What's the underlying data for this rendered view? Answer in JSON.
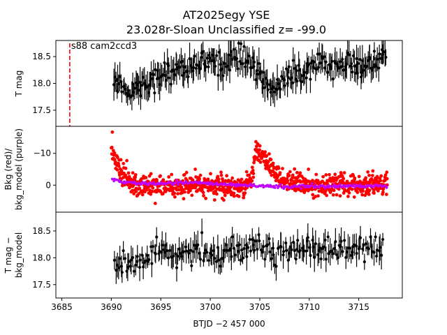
{
  "chart_data": {
    "type": "scatter",
    "title_lines": [
      "AT2025egy  YSE",
      "23.028r-Sloan Unclassified z= -99.0"
    ],
    "xlabel": "BTJD −2 457 000",
    "xlim": [
      3684.4,
      3719.4
    ],
    "xticks": [
      3685,
      3690,
      3695,
      3700,
      3705,
      3710,
      3715
    ],
    "vline": {
      "x": 3685.8,
      "color": "#ff0000",
      "style": "dashed"
    },
    "annotation": "s88 cam2ccd3",
    "colors": {
      "points": "#000000",
      "bkg": "#ff0000",
      "bkg_model": "#bf00ff",
      "vline": "#ff0000"
    },
    "panels": [
      {
        "id": "tmag",
        "ylabel": [
          "T mag"
        ],
        "ylim": [
          18.8,
          17.2
        ],
        "inverted": true,
        "yticks": [
          17.5,
          18.0,
          18.5
        ],
        "ytick_labels": [
          "17.5",
          "18.0",
          "18.5"
        ],
        "series": [
          {
            "style": "errorbar",
            "x_start": 3690.2,
            "x_end": 3717.8,
            "count": 260,
            "trend_x": [
              3690.2,
              3690.8,
              3691.5,
              3692.5,
              3693.5,
              3694.5,
              3695.5,
              3697.0,
              3699.0,
              3701.0,
              3702.5,
              3703.5,
              3704.3,
              3705.0,
              3706.0,
              3707.0,
              3708.5,
              3710.0,
              3712.0,
              3714.0,
              3716.0,
              3717.0,
              3717.8
            ],
            "trend_y": [
              18.1,
              18.0,
              17.9,
              17.9,
              18.0,
              18.1,
              18.2,
              18.3,
              18.35,
              18.4,
              18.45,
              18.5,
              18.4,
              18.1,
              17.95,
              18.0,
              18.15,
              18.3,
              18.35,
              18.35,
              18.35,
              18.4,
              18.55
            ],
            "scatter": 0.22,
            "error": 0.2
          }
        ]
      },
      {
        "id": "bkg",
        "ylabel": [
          "Bkg (red)/",
          "bkg_model (purple)"
        ],
        "ylim": [
          -18.5,
          8.5
        ],
        "inverted": false,
        "yticks": [
          0,
          -10
        ],
        "ytick_labels": [
          "0",
          "−10"
        ],
        "series": [
          {
            "style": "points",
            "color_key": "bkg",
            "x_start": 3690.0,
            "x_end": 3717.9,
            "count": 900,
            "trend_x": [
              3690.0,
              3690.5,
              3691.5,
              3692.5,
              3694.0,
              3697.0,
              3700.0,
              3703.0,
              3704.2,
              3704.6,
              3705.2,
              3706.5,
              3708.0,
              3710.0,
              3713.0,
              3716.0,
              3717.9
            ],
            "trend_y": [
              -12,
              -6,
              -2,
              0,
              0,
              0,
              0,
              0,
              -1,
              -12,
              -9,
              -4,
              -1,
              0,
              0,
              0,
              -1
            ],
            "scatter": 3.5
          },
          {
            "style": "points",
            "color_key": "bkg_model",
            "x_start": 3690.0,
            "x_end": 3717.9,
            "count": 260,
            "trend_x": [
              3690.0,
              3691.0,
              3693.0,
              3697.0,
              3700.0,
              3703.0,
              3705.0,
              3707.0,
              3710.0,
              3713.0,
              3716.0,
              3717.9
            ],
            "trend_y": [
              -2,
              -1,
              -0.5,
              -0.8,
              -0.5,
              0,
              0.3,
              0.5,
              0.4,
              0.3,
              0.2,
              0.2
            ],
            "scatter": 0.5
          }
        ]
      },
      {
        "id": "tmag_bkg",
        "ylabel": [
          "T mag −",
          "bkg_model"
        ],
        "ylim": [
          18.85,
          17.25
        ],
        "inverted": true,
        "yticks": [
          17.5,
          18.0,
          18.5
        ],
        "ytick_labels": [
          "17.5",
          "18.0",
          "18.5"
        ],
        "series": [
          {
            "style": "errorbar",
            "x_start": 3690.3,
            "x_end": 3717.5,
            "count": 210,
            "trend_x": [
              3690.3,
              3692.0,
              3694.0,
              3696.0,
              3698.0,
              3700.0,
              3702.0,
              3703.5,
              3704.3,
              3705.5,
              3707.0,
              3709.0,
              3711.0,
              3713.0,
              3715.0,
              3717.5
            ],
            "trend_y": [
              17.85,
              17.9,
              18.0,
              18.1,
              18.1,
              18.1,
              18.1,
              18.2,
              18.3,
              18.2,
              18.1,
              18.2,
              18.15,
              18.15,
              18.15,
              18.2
            ],
            "scatter": 0.22,
            "error": 0.18
          }
        ]
      }
    ]
  }
}
